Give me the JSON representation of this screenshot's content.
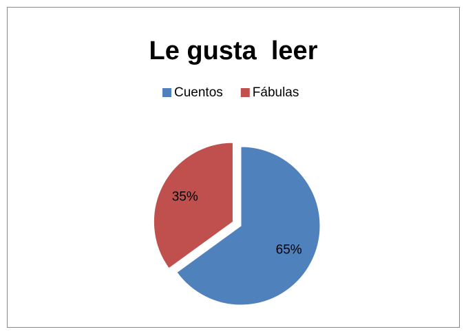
{
  "chart_data": {
    "type": "pie",
    "title": "Le gusta  leer",
    "categories": [
      "Cuentos",
      "Fábulas"
    ],
    "values": [
      65,
      35
    ],
    "value_labels": [
      "65%",
      "35%"
    ],
    "colors": [
      "#4f81bd",
      "#c0504d"
    ],
    "legend": "top"
  }
}
